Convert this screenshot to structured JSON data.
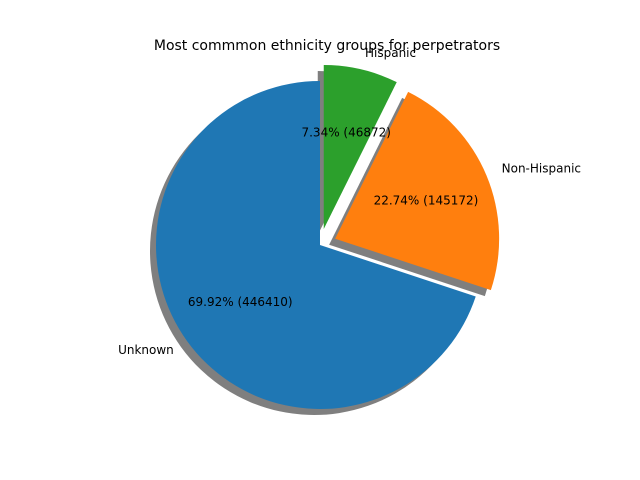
{
  "chart_data": {
    "type": "pie",
    "title": "Most commmon ethnicity groups for perpetrators",
    "categories": [
      "Unknown",
      "Non-Hispanic",
      "Hispanic"
    ],
    "values": [
      446410,
      145172,
      46872
    ],
    "percent_labels": [
      "69.92%  (446410)",
      "22.74%  (145172)",
      "7.34%  (46872)"
    ],
    "colors": [
      "#1f77b4",
      "#ff7f0e",
      "#2ca02c"
    ],
    "shadow": true,
    "explode": [
      0,
      0.1,
      0.1
    ],
    "start_angle": 90,
    "direction": "counterclockwise"
  }
}
